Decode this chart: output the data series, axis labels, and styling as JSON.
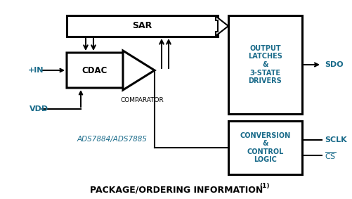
{
  "bg_color": "#ffffff",
  "line_color": "#000000",
  "text_color": "#000000",
  "cyan_color": "#1a6b8a",
  "title": "PACKAGE/ORDERING INFORMATION",
  "title_superscript": "(1)",
  "label_IN": "+IN",
  "label_VDD": "VDD",
  "label_ADS": "ADS7884/ADS7885",
  "label_SAR": "SAR",
  "label_CDAC": "CDAC",
  "label_COMPARATOR": "COMPARATOR",
  "label_OUTPUT": "OUTPUT\nLATCHES\n&\n3-STATE\nDRIVERS",
  "label_CONVERSION": "CONVERSION\n&\nCONTROL\nLOGIC",
  "label_SDO": "SDO",
  "label_SCLK": "SCLK",
  "label_CS": "CS"
}
